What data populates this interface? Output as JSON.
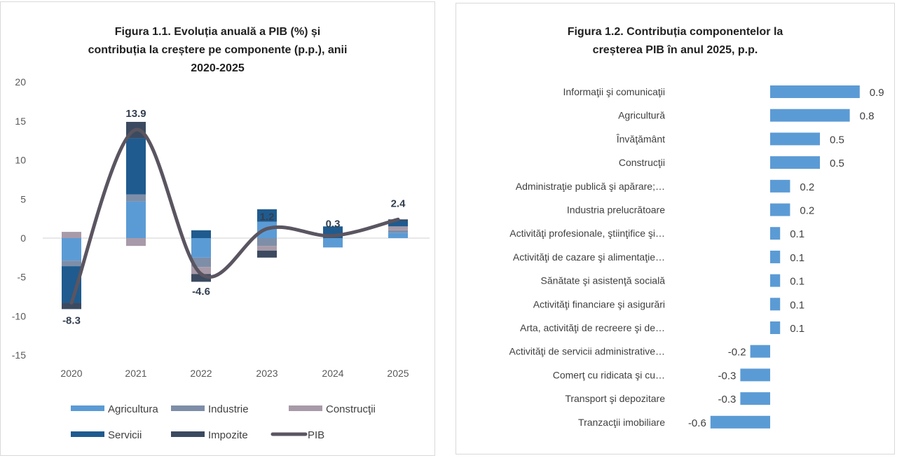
{
  "chart_data": [
    {
      "type": "bar",
      "stacked": true,
      "title_lines": [
        "Figura 1.1. Evoluția anuală a PIB (%) și",
        "contribuția la creștere pe componente (p.p.), anii",
        "2020-2025"
      ],
      "categories": [
        "2020",
        "2021",
        "2022",
        "2023",
        "2024",
        "2025"
      ],
      "ylim": [
        -15,
        20
      ],
      "yticks": [
        -15,
        -10,
        -5,
        0,
        5,
        10,
        15,
        20
      ],
      "legend_position": "bottom",
      "series": [
        {
          "name": "Agricultura",
          "color": "#5b9bd5",
          "values": [
            -2.9,
            4.7,
            -2.5,
            2.1,
            -1.2,
            0.7
          ]
        },
        {
          "name": "Industrie",
          "color": "#7e8ea8",
          "values": [
            -0.7,
            0.9,
            -1.2,
            -1.0,
            0,
            0.3
          ]
        },
        {
          "name": "Construcţii",
          "color": "#a89aa8",
          "values": [
            0.8,
            -1.0,
            -0.9,
            -0.6,
            0,
            0.5
          ]
        },
        {
          "name": "Servicii",
          "color": "#1f5b8f",
          "values": [
            -4.7,
            7.2,
            1.0,
            1.6,
            1.5,
            0.7
          ]
        },
        {
          "name": "Impozite",
          "color": "#3b4a60",
          "values": [
            -0.8,
            2.1,
            -1.0,
            -0.9,
            0,
            0.2
          ]
        }
      ],
      "line": {
        "name": "PIB",
        "color": "#5a5560",
        "type": "line",
        "values": [
          -8.3,
          13.9,
          -4.6,
          1.2,
          0.3,
          2.4
        ],
        "labels": [
          "-8.3",
          "13.9",
          "-4.6",
          "1.2",
          "0.3",
          "2.4"
        ]
      }
    },
    {
      "type": "bar",
      "orientation": "horizontal",
      "title_lines": [
        "Figura 1.2. Contribuția componentelor la",
        "creșterea PIB în anul 2025, p.p."
      ],
      "bar_color": "#5b9bd5",
      "categories": [
        "Informaţii şi comunicaţii",
        "Agricultură",
        "Învăţământ",
        "Construcţii",
        "Administraţie publică şi apărare;…",
        "Industria prelucrătoare",
        "Activităţi profesionale, ştiinţifice şi…",
        "Activităţi de cazare şi alimentaţie…",
        "Sănătate şi asistenţă socială",
        "Activităţi financiare şi asigurări",
        "Arta, activităţi de recreere şi de…",
        "Activităţi de servicii administrative…",
        "Comerţ cu ridicata şi cu…",
        "Transport şi depozitare",
        "Tranzacţii imobiliare"
      ],
      "values": [
        0.9,
        0.8,
        0.5,
        0.5,
        0.2,
        0.2,
        0.1,
        0.1,
        0.1,
        0.1,
        0.1,
        -0.2,
        -0.3,
        -0.3,
        -0.6
      ],
      "labels": [
        "0.9",
        "0.8",
        "0.5",
        "0.5",
        "0.2",
        "0.2",
        "0.1",
        "0.1",
        "0.1",
        "0.1",
        "0.1",
        "-0.2",
        "-0.3",
        "-0.3",
        "-0.6"
      ]
    }
  ]
}
